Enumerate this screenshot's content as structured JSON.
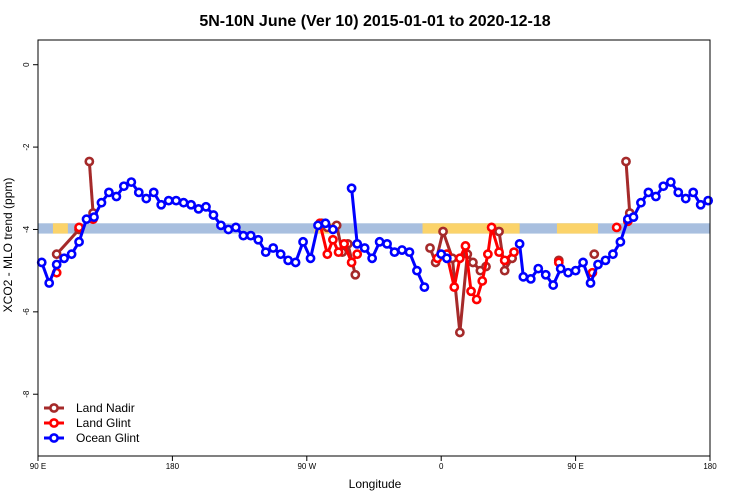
{
  "chart_data": {
    "type": "line",
    "title": "5N-10N June (Ver 10)   2015-01-01 to 2020-12-18",
    "xlabel": "Longitude",
    "ylabel": "XCO2 - MLO trend (ppm)",
    "xlim": [
      0,
      360
    ],
    "ylim": [
      -9.5,
      0.6
    ],
    "x_ticks": [
      {
        "value": 0,
        "label": "90 E"
      },
      {
        "value": 72,
        "label": "180"
      },
      {
        "value": 144,
        "label": "90 W"
      },
      {
        "value": 216,
        "label": "0"
      },
      {
        "value": 288,
        "label": "90 E"
      },
      {
        "value": 360,
        "label": "180"
      }
    ],
    "y_ticks": [
      0,
      -2,
      -4,
      -6,
      -8
    ],
    "band": {
      "y_min": -4.1,
      "y_max": -3.85,
      "color": "#a8bfdf",
      "land_color": "#fbd36a"
    },
    "land_spans": [
      [
        8,
        16
      ],
      [
        148,
        158
      ],
      [
        206,
        258
      ],
      [
        278,
        300
      ]
    ],
    "legend": {
      "position": "bottom-left",
      "entries": [
        {
          "label": "Land Nadir",
          "color": "#a52a2a"
        },
        {
          "label": "Land Glint",
          "color": "#ff0000"
        },
        {
          "label": "Ocean Glint",
          "color": "#0000ff"
        }
      ]
    },
    "series": [
      {
        "name": "Land Nadir",
        "color": "#a52a2a",
        "segments": [
          [
            [
              10,
              -4.6
            ],
            [
              22,
              -4.0
            ]
          ],
          [
            [
              27.5,
              -2.35
            ],
            [
              29.5,
              -3.6
            ]
          ],
          [
            [
              152,
              -3.85
            ],
            [
              155,
              -3.95
            ],
            [
              160,
              -3.9
            ],
            [
              163,
              -4.55
            ],
            [
              166,
              -4.35
            ],
            [
              170,
              -5.1
            ]
          ],
          [
            [
              210,
              -4.45
            ],
            [
              213,
              -4.8
            ],
            [
              217,
              -4.05
            ],
            [
              222,
              -4.7
            ],
            [
              226,
              -6.5
            ],
            [
              230,
              -4.6
            ],
            [
              233,
              -4.8
            ],
            [
              237,
              -5.0
            ],
            [
              240,
              -4.9
            ]
          ],
          [
            [
              247,
              -4.05
            ],
            [
              250,
              -5.0
            ],
            [
              254,
              -4.7
            ]
          ],
          [
            [
              279,
              -4.75
            ]
          ],
          [
            [
              298,
              -4.6
            ]
          ],
          [
            [
              315,
              -2.35
            ],
            [
              317,
              -3.6
            ]
          ]
        ]
      },
      {
        "name": "Land Glint",
        "color": "#ff0000",
        "segments": [
          [
            [
              10,
              -5.05
            ]
          ],
          [
            [
              22,
              -3.95
            ]
          ],
          [
            [
              29.5,
              -3.75
            ]
          ],
          [
            [
              151,
              -3.85
            ],
            [
              155,
              -4.6
            ],
            [
              158,
              -4.25
            ],
            [
              161,
              -4.55
            ],
            [
              164,
              -4.35
            ],
            [
              168,
              -4.8
            ],
            [
              171,
              -4.6
            ]
          ],
          [
            [
              214,
              -4.7
            ],
            [
              219,
              -4.6
            ],
            [
              223,
              -5.4
            ],
            [
              226,
              -4.7
            ],
            [
              229,
              -4.4
            ],
            [
              232,
              -5.5
            ],
            [
              235,
              -5.7
            ],
            [
              238,
              -5.25
            ],
            [
              241,
              -4.6
            ],
            [
              243,
              -3.95
            ],
            [
              247,
              -4.55
            ],
            [
              250,
              -4.75
            ],
            [
              255,
              -4.55
            ]
          ],
          [
            [
              279,
              -4.8
            ]
          ],
          [
            [
              297,
              -5.05
            ]
          ],
          [
            [
              310,
              -3.95
            ]
          ],
          [
            [
              316,
              -3.8
            ]
          ]
        ]
      },
      {
        "name": "Ocean Glint",
        "color": "#0000ff",
        "segments": [
          [
            [
              2,
              -4.8
            ],
            [
              6,
              -5.3
            ],
            [
              10,
              -4.85
            ],
            [
              14,
              -4.7
            ],
            [
              18,
              -4.6
            ],
            [
              22,
              -4.3
            ],
            [
              26,
              -3.75
            ],
            [
              30,
              -3.7
            ],
            [
              34,
              -3.35
            ],
            [
              38,
              -3.1
            ],
            [
              42,
              -3.2
            ],
            [
              46,
              -2.95
            ],
            [
              50,
              -2.85
            ],
            [
              54,
              -3.1
            ],
            [
              58,
              -3.25
            ],
            [
              62,
              -3.1
            ],
            [
              66,
              -3.4
            ],
            [
              70,
              -3.3
            ],
            [
              74,
              -3.3
            ],
            [
              78,
              -3.35
            ],
            [
              82,
              -3.4
            ],
            [
              86,
              -3.5
            ],
            [
              90,
              -3.45
            ],
            [
              94,
              -3.65
            ],
            [
              98,
              -3.9
            ],
            [
              102,
              -4.0
            ],
            [
              106,
              -3.95
            ],
            [
              110,
              -4.15
            ],
            [
              114,
              -4.15
            ],
            [
              118,
              -4.25
            ],
            [
              122,
              -4.55
            ],
            [
              126,
              -4.45
            ],
            [
              130,
              -4.6
            ],
            [
              134,
              -4.75
            ],
            [
              138,
              -4.8
            ],
            [
              142,
              -4.3
            ],
            [
              146,
              -4.7
            ],
            [
              150,
              -3.9
            ],
            [
              154,
              -3.85
            ],
            [
              158,
              -4.0
            ]
          ],
          [
            [
              168,
              -3.0
            ],
            [
              171,
              -4.35
            ],
            [
              175,
              -4.45
            ],
            [
              179,
              -4.7
            ],
            [
              183,
              -4.3
            ],
            [
              187,
              -4.35
            ],
            [
              191,
              -4.55
            ],
            [
              195,
              -4.5
            ],
            [
              199,
              -4.55
            ],
            [
              203,
              -5.0
            ],
            [
              207,
              -5.4
            ]
          ],
          [
            [
              216,
              -4.6
            ],
            [
              219,
              -4.7
            ]
          ],
          [
            [
              258,
              -4.35
            ],
            [
              260,
              -5.15
            ],
            [
              264,
              -5.2
            ],
            [
              268,
              -4.95
            ],
            [
              272,
              -5.1
            ],
            [
              276,
              -5.35
            ],
            [
              280,
              -4.95
            ],
            [
              284,
              -5.05
            ],
            [
              288,
              -5.0
            ],
            [
              292,
              -4.8
            ],
            [
              296,
              -5.3
            ],
            [
              300,
              -4.85
            ],
            [
              304,
              -4.75
            ],
            [
              308,
              -4.6
            ],
            [
              312,
              -4.3
            ],
            [
              316,
              -3.75
            ],
            [
              319,
              -3.7
            ],
            [
              323,
              -3.35
            ],
            [
              327,
              -3.1
            ],
            [
              331,
              -3.2
            ],
            [
              335,
              -2.95
            ],
            [
              339,
              -2.85
            ],
            [
              343,
              -3.1
            ],
            [
              347,
              -3.25
            ],
            [
              351,
              -3.1
            ],
            [
              355,
              -3.4
            ],
            [
              359,
              -3.3
            ]
          ]
        ]
      }
    ]
  }
}
